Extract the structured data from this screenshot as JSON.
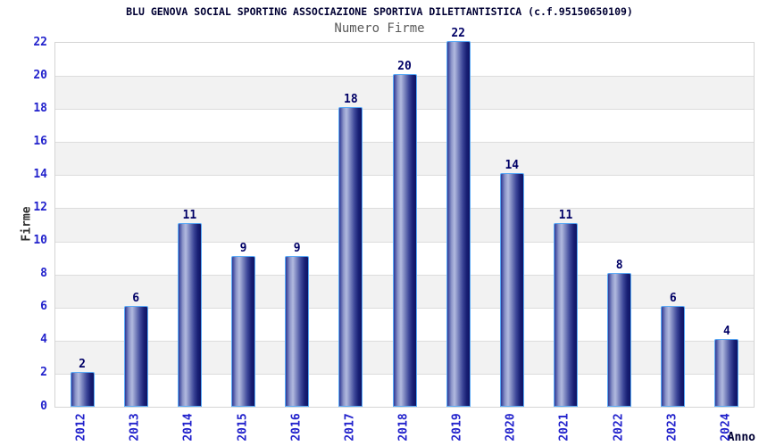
{
  "header": {
    "title": "BLU GENOVA SOCIAL SPORTING ASSOCIAZIONE SPORTIVA DILETTANTISTICA (c.f.95150650109)",
    "subtitle": "Numero Firme"
  },
  "chart_data": {
    "type": "bar",
    "title": "BLU GENOVA SOCIAL SPORTING ASSOCIAZIONE SPORTIVA DILETTANTISTICA (c.f.95150650109)",
    "subtitle": "Numero Firme",
    "categories": [
      "2012",
      "2013",
      "2014",
      "2015",
      "2016",
      "2017",
      "2018",
      "2019",
      "2020",
      "2021",
      "2022",
      "2023",
      "2024"
    ],
    "values": [
      2,
      6,
      11,
      9,
      9,
      18,
      20,
      22,
      14,
      11,
      8,
      6,
      4
    ],
    "xlabel": "Anno",
    "ylabel": "Firme",
    "ylim": [
      0,
      22
    ],
    "ytick_step": 2,
    "yticks": [
      0,
      2,
      4,
      6,
      8,
      10,
      12,
      14,
      16,
      18,
      20,
      22
    ],
    "grid": "horizontal-bands",
    "legend": "none",
    "colors": {
      "title": "#000033",
      "subtitle": "#5a5a5a",
      "tick_label": "#2222cc",
      "value_label": "#000066",
      "axis_label_y": "#303030",
      "axis_label_x": "#000033",
      "band_gray": "#f2f2f2",
      "band_white": "#ffffff",
      "gridline": "#dcdcdc",
      "bar_border": "#5aabf7",
      "bar_gradient_stops": [
        "#2e3894 0%",
        "#8b94c8 18%",
        "#b2badf 32%",
        "#7680bc 50%",
        "#3d4799 68%",
        "#1a2176 85%",
        "#0e1363 100%"
      ]
    }
  }
}
